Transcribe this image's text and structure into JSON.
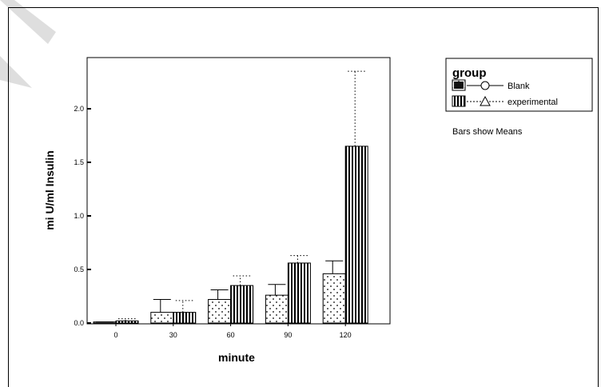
{
  "chart_data": {
    "type": "bar",
    "categories": [
      "0",
      "30",
      "60",
      "90",
      "120"
    ],
    "series": [
      {
        "name": "Blank",
        "values": [
          0.01,
          0.1,
          0.22,
          0.26,
          0.46
        ],
        "error_upper": [
          0.01,
          0.22,
          0.31,
          0.36,
          0.58
        ],
        "marker": "circle",
        "pattern": "dots"
      },
      {
        "name": "experimental",
        "values": [
          0.02,
          0.1,
          0.35,
          0.56,
          1.65
        ],
        "error_upper": [
          0.04,
          0.21,
          0.44,
          0.63,
          2.35
        ],
        "marker": "triangle",
        "pattern": "vertical-stripes"
      }
    ],
    "xlabel": "minute",
    "ylabel": "mi U/ml Insulin",
    "ylim": [
      0.0,
      2.4
    ],
    "yticks": [
      "0.0",
      "0.5",
      "1.0",
      "1.5",
      "2.0"
    ],
    "legend": {
      "title": "group",
      "placement": "right"
    },
    "note": "Bars show Means",
    "grid": false
  },
  "watermark": "A"
}
